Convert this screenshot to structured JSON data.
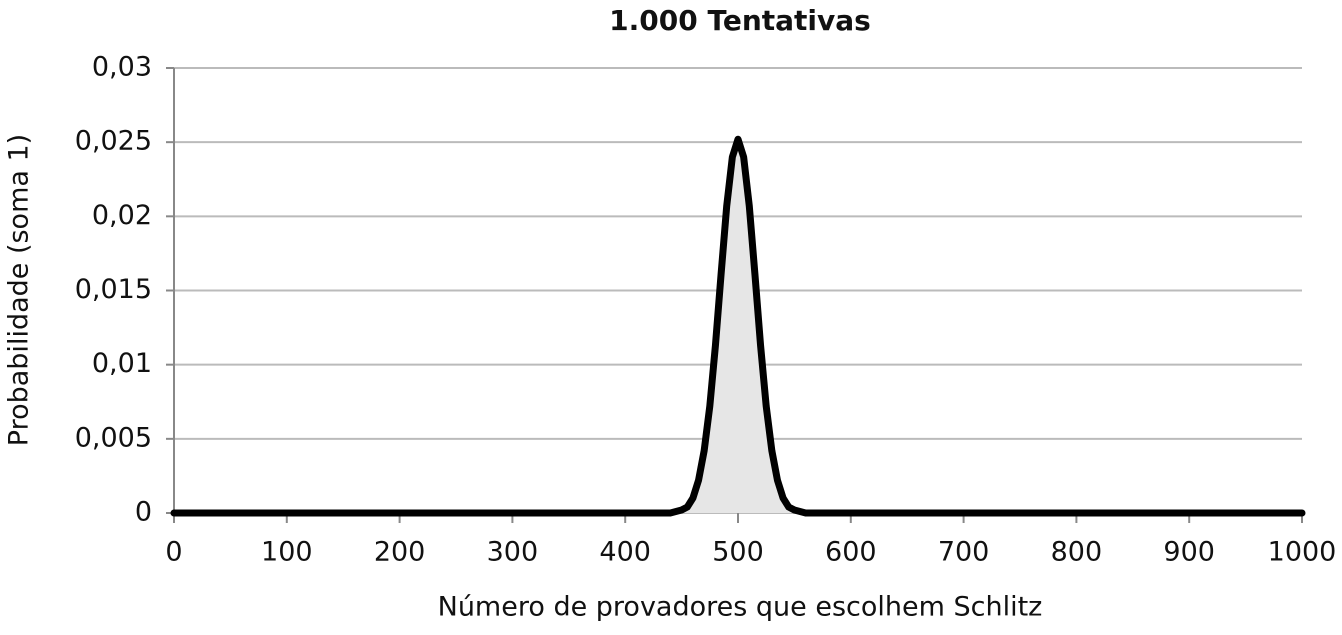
{
  "chart_data": {
    "type": "area",
    "title": "1.000 Tentativas",
    "xlabel": "Número de provadores que escolhem Schlitz",
    "ylabel": "Probabilidade (soma 1)",
    "x": [
      0,
      100,
      200,
      300,
      400,
      440,
      450,
      455,
      460,
      465,
      470,
      475,
      480,
      485,
      490,
      495,
      500,
      505,
      510,
      515,
      520,
      525,
      530,
      535,
      540,
      545,
      550,
      560,
      600,
      700,
      800,
      900,
      1000
    ],
    "values": [
      0,
      0,
      0,
      0,
      0,
      0,
      0.0002,
      0.0004,
      0.001,
      0.0022,
      0.0042,
      0.0072,
      0.0113,
      0.0161,
      0.0207,
      0.024,
      0.0252,
      0.024,
      0.0207,
      0.0161,
      0.0113,
      0.0072,
      0.0042,
      0.0022,
      0.001,
      0.0004,
      0.0002,
      0,
      0,
      0,
      0,
      0,
      0
    ],
    "color": "#000000",
    "fill": "#e6e6e6",
    "xlim": [
      0,
      1000
    ],
    "xticks": [
      0,
      100,
      200,
      300,
      400,
      500,
      600,
      700,
      800,
      900,
      1000
    ],
    "ylim": [
      0,
      0.03
    ],
    "yticks": [
      0,
      {
        "value": 0.005,
        "label": "0,005"
      },
      {
        "value": 0.01,
        "label": "0,01"
      },
      {
        "value": 0.015,
        "label": "0,015"
      },
      {
        "value": 0.02,
        "label": "0,02"
      },
      {
        "value": 0.025,
        "label": "0,025"
      },
      {
        "value": 0.03,
        "label": "0,03"
      }
    ],
    "grid": true
  }
}
